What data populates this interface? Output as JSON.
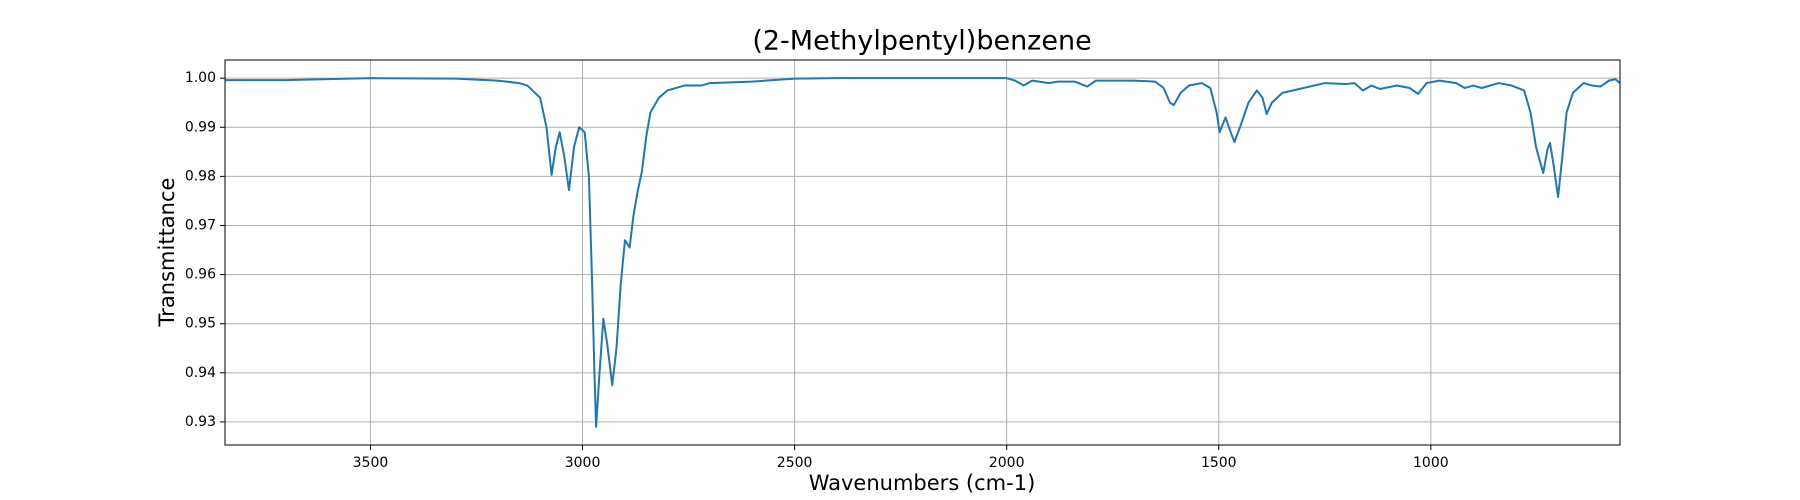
{
  "chart_data": {
    "type": "line",
    "title": "(2-Methylpentyl)benzene",
    "x_label": "Wavenumbers (cm-1)",
    "y_label": "Transmittance",
    "color": "#1f77b4",
    "grid": true,
    "x_reversed": true,
    "xlim": [
      3843,
      554
    ],
    "ylim": [
      0.9253,
      1.0037
    ],
    "xticks": [
      3500,
      3000,
      2500,
      2000,
      1500,
      1000
    ],
    "yticks": [
      0.93,
      0.94,
      0.95,
      0.96,
      0.97,
      0.98,
      0.99,
      {
        "value": 1,
        "label": "1.00"
      }
    ],
    "x": [
      3843,
      3700,
      3500,
      3300,
      3200,
      3150,
      3130,
      3100,
      3085,
      3073,
      3063,
      3054,
      3043,
      3032,
      3020,
      3008,
      2995,
      2985,
      2978,
      2972,
      2968,
      2960,
      2951,
      2942,
      2930,
      2920,
      2910,
      2900,
      2889,
      2880,
      2870,
      2860,
      2850,
      2840,
      2820,
      2800,
      2760,
      2720,
      2700,
      2600,
      2500,
      2400,
      2200,
      2000,
      1980,
      1960,
      1940,
      1900,
      1880,
      1840,
      1810,
      1790,
      1700,
      1650,
      1630,
      1615,
      1606,
      1590,
      1570,
      1540,
      1520,
      1505,
      1498,
      1484,
      1472,
      1463,
      1450,
      1430,
      1410,
      1397,
      1387,
      1375,
      1350,
      1300,
      1250,
      1200,
      1180,
      1160,
      1140,
      1120,
      1080,
      1050,
      1030,
      1010,
      980,
      940,
      920,
      900,
      880,
      840,
      810,
      780,
      765,
      752,
      735,
      725,
      719,
      710,
      700,
      690,
      680,
      665,
      640,
      620,
      600,
      580,
      565,
      554
    ],
    "values": [
      0.9996,
      0.9996,
      1.0,
      0.9999,
      0.9995,
      0.999,
      0.9985,
      0.996,
      0.99,
      0.9803,
      0.986,
      0.989,
      0.984,
      0.9772,
      0.986,
      0.99,
      0.989,
      0.98,
      0.96,
      0.94,
      0.929,
      0.94,
      0.951,
      0.946,
      0.9375,
      0.945,
      0.958,
      0.967,
      0.9655,
      0.972,
      0.977,
      0.981,
      0.988,
      0.993,
      0.996,
      0.9975,
      0.9985,
      0.9985,
      0.999,
      0.9993,
      0.9999,
      1.0,
      1.0,
      1.0,
      0.9995,
      0.9985,
      0.9995,
      0.999,
      0.9993,
      0.9993,
      0.9983,
      0.9995,
      0.9995,
      0.9993,
      0.998,
      0.995,
      0.9945,
      0.997,
      0.9985,
      0.999,
      0.998,
      0.993,
      0.989,
      0.992,
      0.989,
      0.987,
      0.99,
      0.995,
      0.9975,
      0.996,
      0.9927,
      0.995,
      0.997,
      0.998,
      0.999,
      0.9988,
      0.999,
      0.9975,
      0.9985,
      0.9978,
      0.9985,
      0.998,
      0.9968,
      0.999,
      0.9995,
      0.999,
      0.998,
      0.9985,
      0.998,
      0.999,
      0.9985,
      0.9975,
      0.993,
      0.986,
      0.9807,
      0.9855,
      0.9868,
      0.982,
      0.9758,
      0.984,
      0.993,
      0.997,
      0.999,
      0.9985,
      0.9983,
      0.9995,
      0.9998,
      0.999
    ]
  }
}
